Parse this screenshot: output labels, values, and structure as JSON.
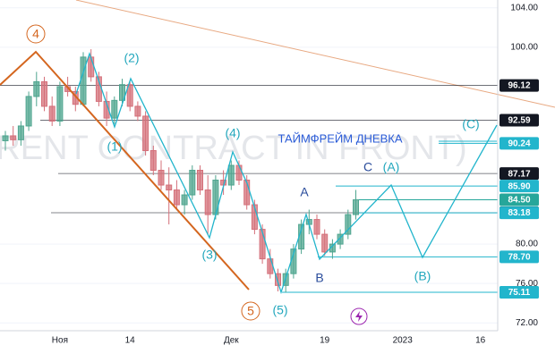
{
  "chart_data": {
    "type": "candlestick",
    "watermark": "BRENT CONTRACT IN FRONT)",
    "categories": [
      null,
      null,
      null,
      null,
      null,
      null,
      null,
      "Ноя",
      null,
      null,
      null,
      null,
      null,
      null,
      null,
      null,
      "14",
      null,
      null,
      null,
      null,
      null,
      null,
      null,
      null,
      null,
      null,
      null,
      null,
      "Дек",
      null,
      null,
      null,
      null,
      null,
      null,
      null,
      null,
      null,
      null,
      null,
      "19",
      null,
      null,
      null,
      null,
      null,
      null,
      null,
      null,
      null,
      "2023",
      null,
      null,
      null,
      null,
      null,
      null,
      null,
      null,
      null,
      "16",
      null
    ],
    "open": [
      90.5,
      91.0,
      90.6,
      92.0,
      95.0,
      96.5,
      94.0,
      92.5,
      96.0,
      95.5,
      94.2,
      99.0,
      97.0,
      94.5,
      92.8,
      94.6,
      96.2,
      94.0,
      93.0,
      89.5,
      87.5,
      86.0,
      85.5,
      84.0,
      85.0,
      87.5,
      85.5,
      83.0,
      86.5,
      86.0,
      88.0,
      86.5,
      84.0,
      81.5,
      78.5,
      77.0,
      75.8,
      77.0,
      79.5,
      82.0,
      82.5,
      81.0,
      79.2,
      80.0,
      81.0,
      83.0,
      null,
      null,
      null,
      null,
      null,
      null,
      null,
      null,
      null,
      null,
      null,
      null,
      null,
      null,
      null,
      null,
      null
    ],
    "high": [
      91.5,
      92.0,
      92.5,
      95.5,
      97.5,
      97.0,
      95.0,
      96.5,
      97.0,
      96.0,
      99.5,
      99.8,
      97.5,
      95.5,
      95.0,
      96.8,
      96.5,
      94.5,
      93.5,
      90.0,
      88.5,
      87.8,
      86.5,
      85.5,
      88.0,
      88.0,
      87.0,
      87.0,
      87.5,
      88.5,
      88.5,
      87.0,
      84.5,
      82.0,
      79.5,
      77.5,
      77.5,
      80.0,
      82.5,
      83.5,
      83.0,
      81.5,
      80.5,
      81.5,
      83.5,
      85.5,
      null,
      null,
      null,
      null,
      null,
      null,
      null,
      null,
      null,
      null,
      null,
      null,
      null,
      null,
      null,
      null,
      null
    ],
    "low": [
      89.5,
      90.0,
      90.0,
      91.5,
      94.0,
      93.5,
      92.0,
      92.0,
      95.0,
      93.5,
      94.0,
      96.5,
      94.0,
      92.0,
      92.2,
      94.0,
      93.5,
      92.5,
      89.0,
      87.0,
      85.5,
      82.0,
      83.5,
      83.0,
      84.5,
      85.0,
      81.0,
      82.5,
      85.0,
      85.5,
      86.0,
      83.5,
      81.0,
      78.0,
      76.5,
      75.2,
      75.1,
      76.5,
      79.0,
      81.0,
      80.5,
      78.8,
      78.5,
      79.5,
      80.5,
      82.5,
      null,
      null,
      null,
      null,
      null,
      null,
      null,
      null,
      null,
      null,
      null,
      null,
      null,
      null,
      null,
      null,
      null
    ],
    "close": [
      91.0,
      90.6,
      92.0,
      95.0,
      96.5,
      94.0,
      92.5,
      96.0,
      95.5,
      94.2,
      99.0,
      97.0,
      94.5,
      92.8,
      94.6,
      96.2,
      94.0,
      93.0,
      89.5,
      87.5,
      86.0,
      85.5,
      84.0,
      85.0,
      87.5,
      85.5,
      83.0,
      86.5,
      86.0,
      88.0,
      86.5,
      84.0,
      81.5,
      78.5,
      77.0,
      75.8,
      77.0,
      79.5,
      82.0,
      82.5,
      81.0,
      79.2,
      80.0,
      81.0,
      83.0,
      84.5,
      null,
      null,
      null,
      null,
      null,
      null,
      null,
      null,
      null,
      null,
      null,
      null,
      null,
      null,
      null,
      null,
      null
    ],
    "up_color": "#4fa58f",
    "down_color": "#d4707a",
    "ylim": [
      71.2,
      104.8
    ],
    "yticks": [
      {
        "value": 72,
        "label": "72.00"
      },
      {
        "value": 76,
        "label": "76.00"
      },
      {
        "value": 80,
        "label": "80.00"
      },
      {
        "value": 100,
        "label": "100.00"
      },
      {
        "value": 104,
        "label": "104.00"
      }
    ],
    "price_lines": [
      {
        "value": 96.12,
        "color": "#131722"
      },
      {
        "value": 92.59,
        "color": "#131722"
      },
      {
        "value": 90.24,
        "color": "#22b5cc"
      },
      {
        "value": 87.17,
        "color": "#131722"
      },
      {
        "value": 85.9,
        "label": "85.90",
        "color": "#22b5cc"
      },
      {
        "value": 84.5,
        "label": "84.50",
        "color": "#26a69a"
      },
      {
        "value": 83.19,
        "color": "#131722"
      },
      {
        "value": 83.18,
        "color": "#22b5cc"
      },
      {
        "value": 78.7,
        "label": "78.70",
        "color": "#22b5cc"
      },
      {
        "value": 75.11,
        "color": "#22b5cc"
      },
      {
        "value": 75.11,
        "color": "#22b5cc"
      }
    ],
    "annotations": [
      "4",
      "5",
      "(1)",
      "(2)",
      "(3)",
      "(4)",
      "(5)",
      "A",
      "B",
      "C",
      "(A)",
      "(B)",
      "(C)",
      "ТАЙМФРЕЙМ ДНЕВКА"
    ]
  }
}
